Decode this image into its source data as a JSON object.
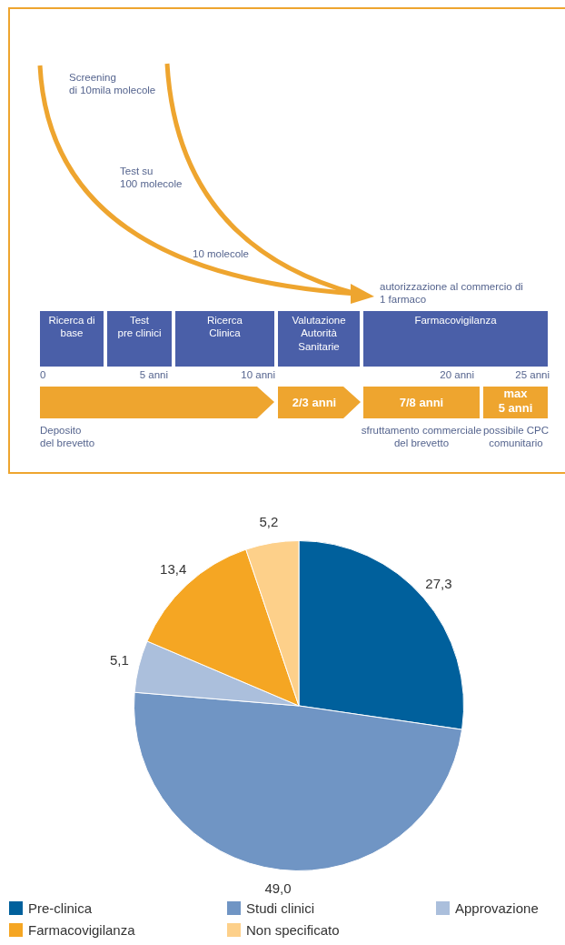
{
  "chart_data": [
    {
      "type": "other",
      "annotations": [
        "Screening\ndi 10mila molecole",
        "Test su\n100 molecole",
        "10 molecole",
        "autorizzazione al commercio di\n1 farmaco",
        "Ricerca di\nbase",
        "Test\npre clinici",
        "Ricerca\nClinica",
        "Valutazione\nAutorità\nSanitarie",
        "Farmacovigilanza",
        "0",
        "5 anni",
        "10 anni",
        "20 anni",
        "25 anni",
        "2/3 anni",
        "7/8 anni",
        "max\n5 anni",
        "Deposito\ndel brevetto",
        "sfruttamento commerciale\ndel brevetto",
        "possibile CPC\ncomunitario"
      ]
    },
    {
      "type": "pie",
      "categories": [
        "Pre-clinica",
        "Studi clinici",
        "Approvazione",
        "Farmacovigilanza",
        "Non specificato"
      ],
      "values": [
        27.3,
        49.0,
        5.1,
        13.4,
        5.2
      ],
      "colors": [
        "#00609c",
        "#7095c4",
        "#abbfdc",
        "#f5a623",
        "#fdd08a"
      ],
      "value_labels": [
        "27,3",
        "49,0",
        "5,1",
        "13,4",
        "5,2"
      ],
      "legend": "bottom"
    }
  ]
}
